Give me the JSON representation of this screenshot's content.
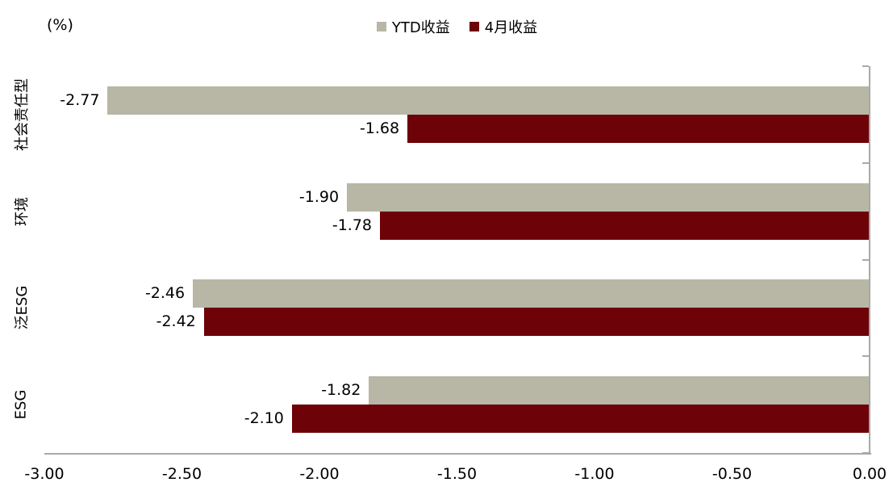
{
  "chart_data": {
    "type": "bar",
    "orientation": "horizontal",
    "unit_label": "(%)",
    "title": "",
    "categories": [
      "社会责任型",
      "环境",
      "泛ESG",
      "ESG"
    ],
    "series": [
      {
        "name": "YTD收益",
        "color": "#b8b6a5",
        "values": [
          -2.77,
          -1.9,
          -2.46,
          -1.82
        ]
      },
      {
        "name": "4月收益",
        "color": "#6d0308",
        "values": [
          -1.68,
          -1.78,
          -2.42,
          -2.1
        ]
      }
    ],
    "data_labels": {
      "YTD收益": [
        "-2.77",
        "-1.90",
        "-2.46",
        "-1.82"
      ],
      "4月收益": [
        "-1.68",
        "-1.78",
        "-2.42",
        "-2.10"
      ]
    },
    "xlim": [
      -3,
      0
    ],
    "x_ticks": [
      -3.0,
      -2.5,
      -2.0,
      -1.5,
      -1.0,
      -0.5,
      0.0
    ],
    "x_tick_labels": [
      "-3.00",
      "-2.50",
      "-2.00",
      "-1.50",
      "-1.00",
      "-0.50",
      "0.00"
    ],
    "legend_position": "top-center",
    "grid": false,
    "axis_color": "#a9a9a9",
    "text_color": "#000000"
  }
}
